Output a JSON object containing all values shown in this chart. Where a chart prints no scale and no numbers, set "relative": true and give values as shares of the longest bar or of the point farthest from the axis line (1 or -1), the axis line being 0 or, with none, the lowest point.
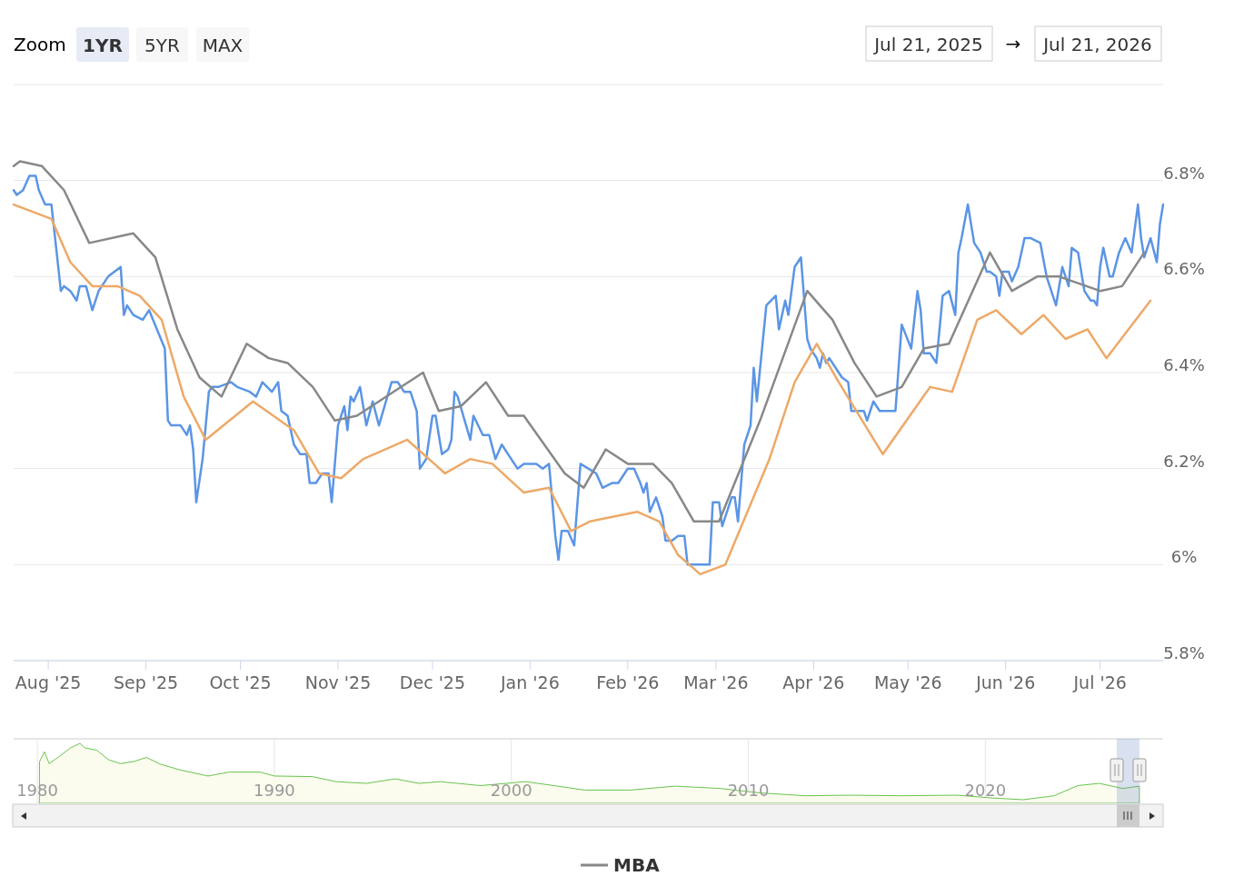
{
  "chart_data": [
    {
      "type": "line",
      "annotations": [
        "Zoom",
        "1YR",
        "5YR",
        "MAX",
        "Jul 21, 2025",
        "→",
        "Jul 21, 2026"
      ],
      "xlim": [
        "2025-07-21",
        "2026-07-21"
      ],
      "xticks": [
        {
          "value": "2025-08-01",
          "label": "Aug '25"
        },
        {
          "value": "2025-09-01",
          "label": "Sep '25"
        },
        {
          "value": "2025-10-01",
          "label": "Oct '25"
        },
        {
          "value": "2025-11-01",
          "label": "Nov '25"
        },
        {
          "value": "2025-12-01",
          "label": "Dec '25"
        },
        {
          "value": "2026-01-01",
          "label": "Jan '26"
        },
        {
          "value": "2026-02-01",
          "label": "Feb '26"
        },
        {
          "value": "2026-03-01",
          "label": "Mar '26"
        },
        {
          "value": "2026-04-01",
          "label": "Apr '26"
        },
        {
          "value": "2026-05-01",
          "label": "May '26"
        },
        {
          "value": "2026-06-01",
          "label": "Jun '26"
        },
        {
          "value": "2026-07-01",
          "label": "Jul '26"
        }
      ],
      "ylim": [
        5.8,
        7.0
      ],
      "yticks": [
        {
          "value": 5.8,
          "label": "5.8%"
        },
        {
          "value": 6,
          "label": "6%"
        },
        {
          "value": 6.2,
          "label": "6.2%"
        },
        {
          "value": 6.4,
          "label": "6.4%"
        },
        {
          "value": 6.6,
          "label": "6.6%"
        },
        {
          "value": 6.8,
          "label": "6.8%"
        },
        {
          "value": 7,
          "label": null
        }
      ],
      "grid": "y",
      "legend": "bottom",
      "marker": "none",
      "line_style": "solid",
      "series": [
        {
          "color": "#5b95e5",
          "x": [
            "2025-07-21",
            "2025-07-22",
            "2025-07-24",
            "2025-07-26",
            "2025-07-28",
            "2025-07-29",
            "2025-07-31",
            "2025-08-02",
            "2025-08-04",
            "2025-08-05",
            "2025-08-06",
            "2025-08-08",
            "2025-08-10",
            "2025-08-11",
            "2025-08-13",
            "2025-08-15",
            "2025-08-17",
            "2025-08-20",
            "2025-08-24",
            "2025-08-25",
            "2025-08-26",
            "2025-08-28",
            "2025-08-31",
            "2025-09-02",
            "2025-09-07",
            "2025-09-08",
            "2025-09-09",
            "2025-09-10",
            "2025-09-12",
            "2025-09-14",
            "2025-09-15",
            "2025-09-16",
            "2025-09-17",
            "2025-09-19",
            "2025-09-21",
            "2025-09-22",
            "2025-09-24",
            "2025-09-28",
            "2025-09-30",
            "2025-10-04",
            "2025-10-06",
            "2025-10-08",
            "2025-10-11",
            "2025-10-13",
            "2025-10-14",
            "2025-10-16",
            "2025-10-18",
            "2025-10-20",
            "2025-10-22",
            "2025-10-23",
            "2025-10-25",
            "2025-10-27",
            "2025-10-29",
            "2025-10-30",
            "2025-11-01",
            "2025-11-03",
            "2025-11-04",
            "2025-11-05",
            "2025-11-06",
            "2025-11-08",
            "2025-11-10",
            "2025-11-12",
            "2025-11-14",
            "2025-11-18",
            "2025-11-20",
            "2025-11-22",
            "2025-11-24",
            "2025-11-26",
            "2025-11-27",
            "2025-11-29",
            "2025-12-01",
            "2025-12-02",
            "2025-12-04",
            "2025-12-06",
            "2025-12-07",
            "2025-12-08",
            "2025-12-09",
            "2025-12-13",
            "2025-12-14",
            "2025-12-17",
            "2025-12-19",
            "2025-12-21",
            "2025-12-23",
            "2025-12-24",
            "2025-12-26",
            "2025-12-28",
            "2025-12-30",
            "2026-01-01",
            "2026-01-03",
            "2026-01-05",
            "2026-01-07",
            "2026-01-09",
            "2026-01-10",
            "2026-01-11",
            "2026-01-13",
            "2026-01-15",
            "2026-01-17",
            "2026-01-22",
            "2026-01-24",
            "2026-01-27",
            "2026-01-29",
            "2026-01-31",
            "2026-02-01",
            "2026-02-03",
            "2026-02-05",
            "2026-02-06",
            "2026-02-07",
            "2026-02-08",
            "2026-02-10",
            "2026-02-12",
            "2026-02-13",
            "2026-02-15",
            "2026-02-17",
            "2026-02-19",
            "2026-02-20",
            "2026-02-22",
            "2026-02-25",
            "2026-02-27",
            "2026-02-28",
            "2026-03-02",
            "2026-03-03",
            "2026-03-06",
            "2026-03-07",
            "2026-03-08",
            "2026-03-10",
            "2026-03-12",
            "2026-03-13",
            "2026-03-14",
            "2026-03-17",
            "2026-03-20",
            "2026-03-21",
            "2026-03-23",
            "2026-03-24",
            "2026-03-26",
            "2026-03-28",
            "2026-03-30",
            "2026-03-31",
            "2026-04-02",
            "2026-04-03",
            "2026-04-04",
            "2026-04-05",
            "2026-04-06",
            "2026-04-09",
            "2026-04-10",
            "2026-04-12",
            "2026-04-13",
            "2026-04-14",
            "2026-04-17",
            "2026-04-18",
            "2026-04-20",
            "2026-04-22",
            "2026-04-27",
            "2026-04-29",
            "2026-05-02",
            "2026-05-04",
            "2026-05-05",
            "2026-05-06",
            "2026-05-08",
            "2026-05-10",
            "2026-05-12",
            "2026-05-14",
            "2026-05-16",
            "2026-05-17",
            "2026-05-18",
            "2026-05-20",
            "2026-05-22",
            "2026-05-24",
            "2026-05-26",
            "2026-05-27",
            "2026-05-29",
            "2026-05-30",
            "2026-05-31",
            "2026-06-02",
            "2026-06-03",
            "2026-06-05",
            "2026-06-07",
            "2026-06-09",
            "2026-06-12",
            "2026-06-14",
            "2026-06-17",
            "2026-06-19",
            "2026-06-21",
            "2026-06-22",
            "2026-06-24",
            "2026-06-26",
            "2026-06-28",
            "2026-06-29",
            "2026-06-30",
            "2026-07-01",
            "2026-07-02",
            "2026-07-04",
            "2026-07-05",
            "2026-07-07",
            "2026-07-09",
            "2026-07-11",
            "2026-07-13",
            "2026-07-14",
            "2026-07-15",
            "2026-07-17",
            "2026-07-19",
            "2026-07-20",
            "2026-07-21"
          ],
          "values": [
            6.78,
            6.77,
            6.78,
            6.81,
            6.81,
            6.78,
            6.75,
            6.75,
            6.63,
            6.57,
            6.58,
            6.57,
            6.55,
            6.58,
            6.58,
            6.53,
            6.57,
            6.6,
            6.62,
            6.52,
            6.54,
            6.52,
            6.51,
            6.53,
            6.45,
            6.3,
            6.29,
            6.29,
            6.29,
            6.27,
            6.29,
            6.24,
            6.13,
            6.22,
            6.36,
            6.37,
            6.37,
            6.38,
            6.37,
            6.36,
            6.35,
            6.38,
            6.36,
            6.38,
            6.32,
            6.31,
            6.25,
            6.23,
            6.23,
            6.17,
            6.17,
            6.19,
            6.19,
            6.13,
            6.29,
            6.33,
            6.28,
            6.35,
            6.34,
            6.37,
            6.29,
            6.34,
            6.29,
            6.38,
            6.38,
            6.36,
            6.36,
            6.32,
            6.2,
            6.22,
            6.31,
            6.31,
            6.23,
            6.24,
            6.26,
            6.36,
            6.35,
            6.26,
            6.31,
            6.27,
            6.27,
            6.22,
            6.25,
            6.24,
            6.22,
            6.2,
            6.21,
            6.21,
            6.21,
            6.2,
            6.21,
            6.06,
            6.01,
            6.07,
            6.07,
            6.04,
            6.21,
            6.19,
            6.16,
            6.17,
            6.17,
            6.19,
            6.2,
            6.2,
            6.17,
            6.15,
            6.17,
            6.11,
            6.14,
            6.1,
            6.05,
            6.05,
            6.06,
            6.06,
            6,
            6,
            6,
            6,
            6.13,
            6.13,
            6.08,
            6.14,
            6.14,
            6.09,
            6.25,
            6.29,
            6.41,
            6.34,
            6.54,
            6.56,
            6.49,
            6.55,
            6.52,
            6.62,
            6.64,
            6.47,
            6.45,
            6.43,
            6.41,
            6.44,
            6.42,
            6.43,
            6.4,
            6.39,
            6.38,
            6.32,
            6.32,
            6.32,
            6.3,
            6.34,
            6.32,
            6.32,
            6.5,
            6.45,
            6.57,
            6.53,
            6.44,
            6.44,
            6.42,
            6.56,
            6.57,
            6.52,
            6.65,
            6.68,
            6.75,
            6.67,
            6.65,
            6.61,
            6.61,
            6.6,
            6.56,
            6.61,
            6.61,
            6.59,
            6.62,
            6.68,
            6.68,
            6.67,
            6.6,
            6.54,
            6.62,
            6.58,
            6.66,
            6.65,
            6.57,
            6.55,
            6.55,
            6.54,
            6.62,
            6.66,
            6.6,
            6.6,
            6.65,
            6.68,
            6.65,
            6.75,
            6.68,
            6.64,
            6.68,
            6.63,
            6.71,
            6.75
          ]
        },
        {
          "name": "MBA",
          "color": "#888888",
          "x": [
            "2025-07-21",
            "2025-07-23",
            "2025-07-30",
            "2025-08-06",
            "2025-08-14",
            "2025-08-28",
            "2025-09-04",
            "2025-09-11",
            "2025-09-18",
            "2025-09-25",
            "2025-10-03",
            "2025-10-10",
            "2025-10-16",
            "2025-10-24",
            "2025-10-31",
            "2025-11-07",
            "2025-11-28",
            "2025-12-03",
            "2025-12-10",
            "2025-12-18",
            "2025-12-25",
            "2025-12-30",
            "2026-01-12",
            "2026-01-18",
            "2026-01-25",
            "2026-02-01",
            "2026-02-09",
            "2026-02-15",
            "2026-02-22",
            "2026-03-02",
            "2026-03-15",
            "2026-03-30",
            "2026-04-07",
            "2026-04-14",
            "2026-04-21",
            "2026-04-29",
            "2026-05-06",
            "2026-05-14",
            "2026-05-27",
            "2026-06-03",
            "2026-06-11",
            "2026-06-18",
            "2026-07-01",
            "2026-07-08",
            "2026-07-15"
          ],
          "values": [
            6.83,
            6.84,
            6.83,
            6.78,
            6.67,
            6.69,
            6.64,
            6.49,
            6.39,
            6.35,
            6.46,
            6.43,
            6.42,
            6.37,
            6.3,
            6.31,
            6.4,
            6.32,
            6.33,
            6.38,
            6.31,
            6.31,
            6.19,
            6.16,
            6.24,
            6.21,
            6.21,
            6.17,
            6.09,
            6.09,
            6.3,
            6.57,
            6.51,
            6.42,
            6.35,
            6.37,
            6.45,
            6.46,
            6.65,
            6.57,
            6.6,
            6.6,
            6.57,
            6.58,
            6.65
          ]
        },
        {
          "color": "#eda968",
          "x": [
            "2025-07-21",
            "2025-08-02",
            "2025-08-08",
            "2025-08-15",
            "2025-08-23",
            "2025-08-30",
            "2025-09-06",
            "2025-09-13",
            "2025-09-20",
            "2025-10-05",
            "2025-10-18",
            "2025-10-26",
            "2025-11-02",
            "2025-11-09",
            "2025-11-23",
            "2025-12-05",
            "2025-12-13",
            "2025-12-20",
            "2025-12-30",
            "2026-01-07",
            "2026-01-14",
            "2026-01-20",
            "2026-02-04",
            "2026-02-11",
            "2026-02-17",
            "2026-02-24",
            "2026-03-04",
            "2026-03-18",
            "2026-03-26",
            "2026-04-02",
            "2026-04-09",
            "2026-04-23",
            "2026-05-08",
            "2026-05-15",
            "2026-05-23",
            "2026-05-29",
            "2026-06-06",
            "2026-06-13",
            "2026-06-20",
            "2026-06-27",
            "2026-07-03",
            "2026-07-17"
          ],
          "values": [
            6.75,
            6.72,
            6.63,
            6.58,
            6.58,
            6.56,
            6.51,
            6.35,
            6.26,
            6.34,
            6.28,
            6.19,
            6.18,
            6.22,
            6.26,
            6.19,
            6.22,
            6.21,
            6.15,
            6.16,
            6.07,
            6.09,
            6.11,
            6.09,
            6.02,
            5.98,
            6,
            6.22,
            6.38,
            6.46,
            6.38,
            6.23,
            6.37,
            6.36,
            6.51,
            6.53,
            6.48,
            6.52,
            6.47,
            6.49,
            6.43,
            6.55
          ]
        }
      ]
    },
    {
      "type": "area",
      "relative": true,
      "xlim": [
        1979,
        2027.5
      ],
      "xticks": [
        1980,
        1990,
        2000,
        2010,
        2020
      ],
      "grid": "x",
      "tick_labels": "x",
      "marker": "none",
      "series": [
        {
          "color": "#69c44f",
          "x": [
            1980.1,
            1980.3,
            1980.5,
            1980.9,
            1981.4,
            1981.8,
            1982.0,
            1982.5,
            1983.0,
            1983.5,
            1984.1,
            1984.6,
            1985.2,
            1986.0,
            1987.2,
            1988.1,
            1989.4,
            1990.0,
            1991.6,
            1992.6,
            1993.9,
            1995.1,
            1996.1,
            1997.0,
            1998.7,
            2000.6,
            2001.8,
            2003.1,
            2005.0,
            2006.9,
            2008.8,
            2010.5,
            2012.4,
            2014.3,
            2016.5,
            2018.8,
            2020.3,
            2021.6,
            2022.9,
            2023.9,
            2024.8,
            2025.8,
            2026.5
          ],
          "values": [
            0.68,
            0.85,
            0.64,
            0.76,
            0.92,
            1,
            0.92,
            0.88,
            0.71,
            0.64,
            0.68,
            0.75,
            0.63,
            0.53,
            0.42,
            0.49,
            0.49,
            0.42,
            0.41,
            0.32,
            0.29,
            0.37,
            0.29,
            0.32,
            0.25,
            0.32,
            0.25,
            0.17,
            0.17,
            0.24,
            0.2,
            0.12,
            0.07,
            0.08,
            0.07,
            0.08,
            0.03,
            0,
            0.07,
            0.25,
            0.29,
            0.2,
            0.24
          ]
        }
      ]
    }
  ]
}
